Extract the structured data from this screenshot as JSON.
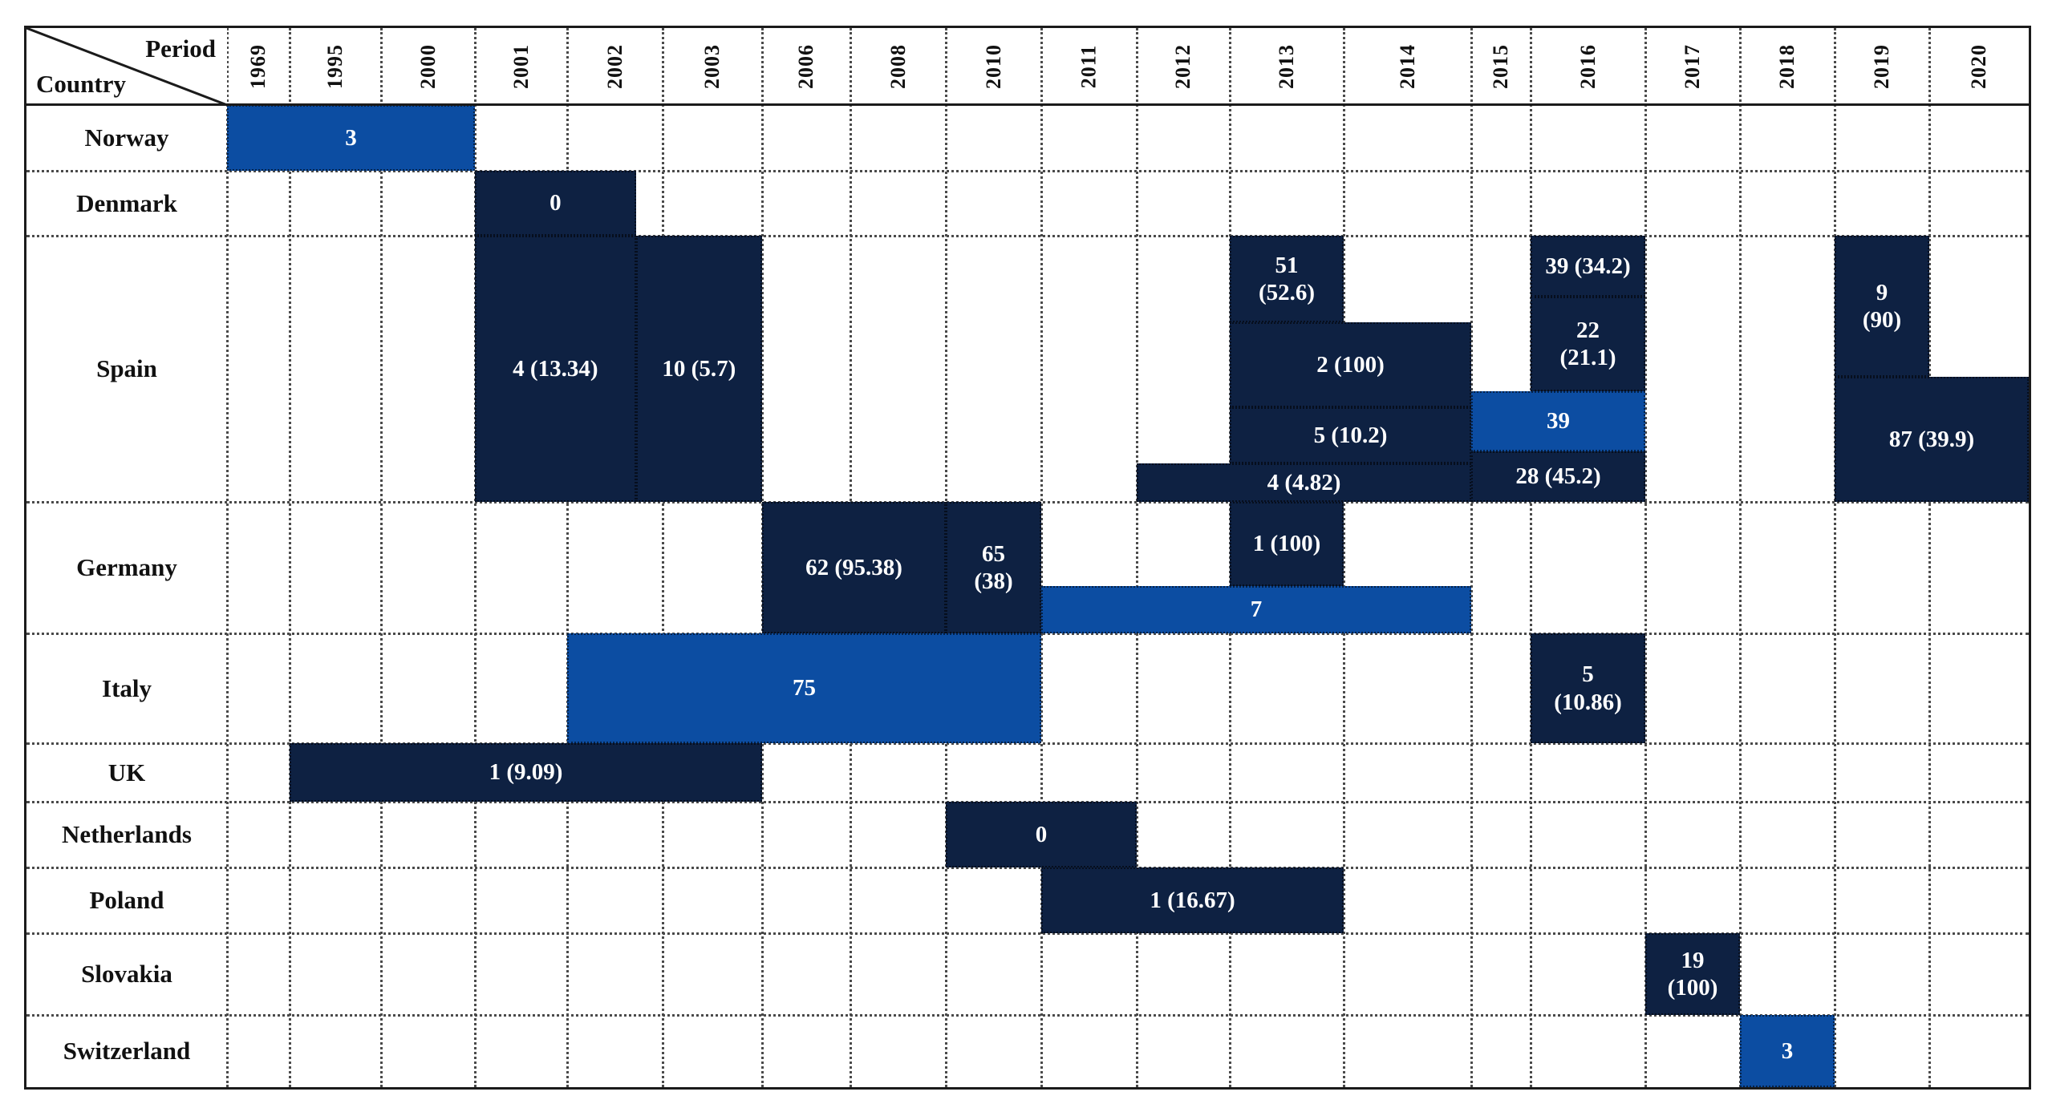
{
  "chart_data": {
    "type": "table",
    "subtype": "gantt-period-country-matrix",
    "header": {
      "period_label": "Period",
      "country_label": "Country"
    },
    "years": [
      "1969",
      "1995",
      "2000",
      "2001",
      "2002",
      "2003",
      "2006",
      "2008",
      "2010",
      "2011",
      "2012",
      "2013",
      "2014",
      "2015",
      "2016",
      "2017",
      "2018",
      "2019",
      "2020"
    ],
    "countries": [
      {
        "id": "norway",
        "label": "Norway"
      },
      {
        "id": "denmark",
        "label": "Denmark"
      },
      {
        "id": "spain",
        "label": "Spain"
      },
      {
        "id": "germany",
        "label": "Germany"
      },
      {
        "id": "italy",
        "label": "Italy"
      },
      {
        "id": "uk",
        "label": "UK"
      },
      {
        "id": "netherlands",
        "label": "Netherlands"
      },
      {
        "id": "poland",
        "label": "Poland"
      },
      {
        "id": "slovakia",
        "label": "Slovakia"
      },
      {
        "id": "switzerland",
        "label": "Switzerland"
      }
    ],
    "legend_position": "none",
    "grid": "dotted",
    "bars": [
      {
        "country": "Norway",
        "row": "norway",
        "label": "3",
        "start": "1969",
        "end": "2000",
        "color": "blue",
        "lane": [
          0,
          1
        ]
      },
      {
        "country": "Denmark",
        "row": "denmark",
        "label": "0",
        "start": "2001",
        "end": "2002",
        "end_frac": 0.72,
        "color": "navy",
        "lane": [
          0,
          1
        ]
      },
      {
        "country": "Spain",
        "row": "spain",
        "label": "4 (13.34)",
        "start": "2001",
        "end": "2002",
        "end_frac": 0.72,
        "color": "navy",
        "lane": [
          0,
          1
        ]
      },
      {
        "country": "Spain",
        "row": "spain",
        "label": "10 (5.7)",
        "start": "2002",
        "start_frac": 0.72,
        "end": "2003",
        "color": "navy",
        "lane": [
          0,
          1
        ]
      },
      {
        "country": "Spain",
        "row": "spain",
        "label": "51\n(52.6)",
        "start": "2013",
        "end": "2013",
        "color": "navy",
        "lane": [
          0,
          0.325
        ]
      },
      {
        "country": "Spain",
        "row": "spain",
        "label": "2 (100)",
        "start": "2013",
        "end": "2014",
        "color": "navy",
        "lane": [
          0.325,
          0.645
        ]
      },
      {
        "country": "Spain",
        "row": "spain",
        "label": "5 (10.2)",
        "start": "2013",
        "end": "2014",
        "color": "navy",
        "lane": [
          0.645,
          0.855
        ]
      },
      {
        "country": "Spain",
        "row": "spain",
        "label": "4 (4.82)",
        "start": "2012",
        "end": "2014",
        "color": "navy",
        "lane": [
          0.855,
          1
        ]
      },
      {
        "country": "Spain",
        "row": "spain",
        "label": "39 (34.2)",
        "start": "2016",
        "end": "2016",
        "color": "navy",
        "lane": [
          0,
          0.23
        ]
      },
      {
        "country": "Spain",
        "row": "spain",
        "label": "22\n(21.1)",
        "start": "2016",
        "end": "2016",
        "color": "navy",
        "lane": [
          0.23,
          0.585
        ]
      },
      {
        "country": "Spain",
        "row": "spain",
        "label": "39",
        "start": "2015",
        "end": "2016",
        "color": "blue",
        "lane": [
          0.585,
          0.81
        ]
      },
      {
        "country": "Spain",
        "row": "spain",
        "label": "28 (45.2)",
        "start": "2015",
        "end": "2016",
        "color": "navy",
        "lane": [
          0.81,
          1
        ]
      },
      {
        "country": "Spain",
        "row": "spain",
        "label": "9\n(90)",
        "start": "2019",
        "end": "2019",
        "color": "navy",
        "lane": [
          0,
          0.53
        ]
      },
      {
        "country": "Spain",
        "row": "spain",
        "label": "87 (39.9)",
        "start": "2019",
        "end": "2020",
        "color": "navy",
        "lane": [
          0.53,
          1
        ]
      },
      {
        "country": "Germany",
        "row": "germany",
        "label": "62 (95.38)",
        "start": "2006",
        "end": "2008",
        "color": "navy",
        "lane": [
          0,
          1
        ]
      },
      {
        "country": "Germany",
        "row": "germany",
        "label": "65\n(38)",
        "start": "2010",
        "end": "2010",
        "color": "navy",
        "lane": [
          0,
          1
        ]
      },
      {
        "country": "Germany",
        "row": "germany",
        "label": "1 (100)",
        "start": "2013",
        "end": "2013",
        "color": "navy",
        "lane": [
          0,
          0.64
        ]
      },
      {
        "country": "Germany",
        "row": "germany",
        "label": "7",
        "start": "2011",
        "end": "2014",
        "color": "blue",
        "lane": [
          0.64,
          1
        ]
      },
      {
        "country": "Italy",
        "row": "italy",
        "label": "75",
        "start": "2002",
        "end": "2010",
        "color": "blue",
        "lane": [
          0,
          1
        ]
      },
      {
        "country": "Italy",
        "row": "italy",
        "label": "5\n(10.86)",
        "start": "2016",
        "end": "2016",
        "color": "navy",
        "lane": [
          0,
          1
        ]
      },
      {
        "country": "UK",
        "row": "uk",
        "label": "1 (9.09)",
        "start": "1995",
        "end": "2003",
        "color": "navy",
        "lane": [
          0,
          1
        ]
      },
      {
        "country": "Netherlands",
        "row": "netherlands",
        "label": "0",
        "start": "2010",
        "end": "2011",
        "color": "navy",
        "lane": [
          0,
          1
        ]
      },
      {
        "country": "Poland",
        "row": "poland",
        "label": "1 (16.67)",
        "start": "2011",
        "end": "2013",
        "color": "navy",
        "lane": [
          0,
          1
        ]
      },
      {
        "country": "Slovakia",
        "row": "slovakia",
        "label": "19\n(100)",
        "start": "2017",
        "end": "2017",
        "color": "navy",
        "lane": [
          0,
          1
        ]
      },
      {
        "country": "Switzerland",
        "row": "switzerland",
        "label": "3",
        "start": "2018",
        "end": "2018",
        "color": "blue",
        "lane": [
          0,
          1
        ]
      }
    ]
  },
  "colors": {
    "navy": "#0e2142",
    "blue": "#0c4da2",
    "bar_text": "#ffffff",
    "grid": "#4a4a4a",
    "border": "#1b1b1b",
    "background": "#ffffff"
  }
}
